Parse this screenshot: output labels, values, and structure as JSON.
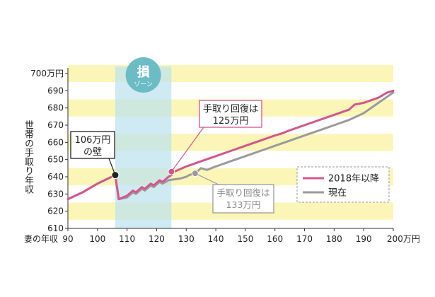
{
  "chart_data": {
    "type": "line",
    "xlabel": "妻の年収",
    "ylabel": "世帯の手取り年収",
    "x_unit": "万円",
    "y_unit": "万円",
    "xlim": [
      90,
      200
    ],
    "ylim": [
      610,
      700
    ],
    "x_ticks": [
      "90",
      "100",
      "110",
      "120",
      "130",
      "140",
      "150",
      "160",
      "170",
      "180",
      "190",
      "200万円"
    ],
    "y_ticks": [
      "610",
      "620",
      "630",
      "640",
      "650",
      "660",
      "670",
      "680",
      "690",
      "700万円"
    ],
    "zone": {
      "label_main": "損",
      "label_sub": "ゾーン",
      "x_range": [
        106,
        125
      ]
    },
    "series": [
      {
        "name": "2018年以降",
        "color": "#d4568c",
        "points": [
          [
            90,
            627
          ],
          [
            95,
            631
          ],
          [
            100,
            636
          ],
          [
            106,
            641
          ],
          [
            107.2,
            627
          ],
          [
            110,
            629
          ],
          [
            112,
            632
          ],
          [
            113,
            631
          ],
          [
            115,
            634
          ],
          [
            116,
            633
          ],
          [
            118,
            636
          ],
          [
            119,
            635
          ],
          [
            121,
            638
          ],
          [
            122,
            637
          ],
          [
            124,
            640
          ],
          [
            125,
            641
          ],
          [
            126,
            643
          ],
          [
            130,
            646
          ],
          [
            135,
            649
          ],
          [
            140,
            652
          ],
          [
            145,
            655
          ],
          [
            150,
            658
          ],
          [
            155,
            661
          ],
          [
            160,
            664
          ],
          [
            162,
            665
          ],
          [
            165,
            667
          ],
          [
            170,
            670
          ],
          [
            175,
            673
          ],
          [
            180,
            676
          ],
          [
            185,
            679
          ],
          [
            187,
            682
          ],
          [
            190,
            683
          ],
          [
            195,
            686
          ],
          [
            198,
            689
          ],
          [
            200,
            690
          ]
        ]
      },
      {
        "name": "現在",
        "color": "#9b9b9b",
        "points": [
          [
            90,
            627
          ],
          [
            95,
            631
          ],
          [
            100,
            636
          ],
          [
            106,
            641
          ],
          [
            107.2,
            627
          ],
          [
            110,
            628
          ],
          [
            112,
            631
          ],
          [
            113,
            630
          ],
          [
            115,
            633
          ],
          [
            116,
            632
          ],
          [
            118,
            635
          ],
          [
            119,
            634
          ],
          [
            121,
            637
          ],
          [
            122,
            636
          ],
          [
            124,
            638
          ],
          [
            128,
            639
          ],
          [
            130,
            640
          ],
          [
            131,
            641
          ],
          [
            133,
            642
          ],
          [
            135,
            645
          ],
          [
            137,
            644
          ],
          [
            140,
            646
          ],
          [
            145,
            649
          ],
          [
            150,
            652
          ],
          [
            155,
            655
          ],
          [
            160,
            658
          ],
          [
            165,
            661
          ],
          [
            170,
            664
          ],
          [
            175,
            667
          ],
          [
            180,
            670
          ],
          [
            185,
            673
          ],
          [
            190,
            677
          ],
          [
            195,
            683
          ],
          [
            200,
            689
          ]
        ]
      }
    ],
    "annotations": [
      {
        "text_line1": "106万円",
        "text_line2": "の壁",
        "point": [
          106,
          641
        ],
        "color": "#222222"
      },
      {
        "text_line1": "手取り回復は",
        "text_line2": "125万円",
        "point": [
          125,
          643
        ],
        "color": "#d4568c"
      },
      {
        "text_line1": "手取り回復は",
        "text_line2": "133万円",
        "point": [
          133,
          642
        ],
        "color": "#9b9b9b"
      }
    ],
    "legend_position": "right",
    "colors": {
      "band": "#fbf6b8",
      "zone": "#bfe3ee",
      "zone_badge": "#6bbcc4",
      "wall_marker": "#222222"
    }
  }
}
